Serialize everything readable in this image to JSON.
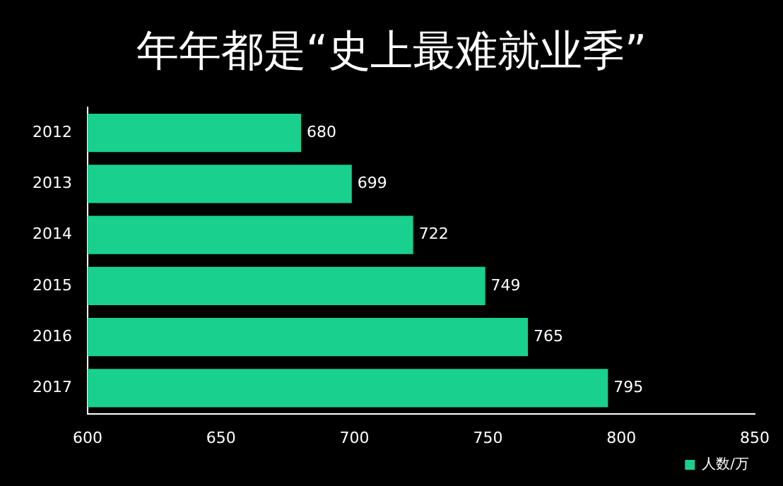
{
  "chart_data": {
    "type": "bar",
    "orientation": "horizontal",
    "title": "年年都是“史上最难就业季”",
    "categories": [
      "2012",
      "2013",
      "2014",
      "2015",
      "2016",
      "2017"
    ],
    "series": [
      {
        "name": "人数/万",
        "color": "#19d08f",
        "values": [
          680,
          699,
          722,
          749,
          765,
          795
        ]
      }
    ],
    "xlim": [
      600,
      850
    ],
    "xticks": [
      600,
      650,
      700,
      750,
      800,
      850
    ],
    "grid": false,
    "legend": "bottom right",
    "data_labels": true
  }
}
